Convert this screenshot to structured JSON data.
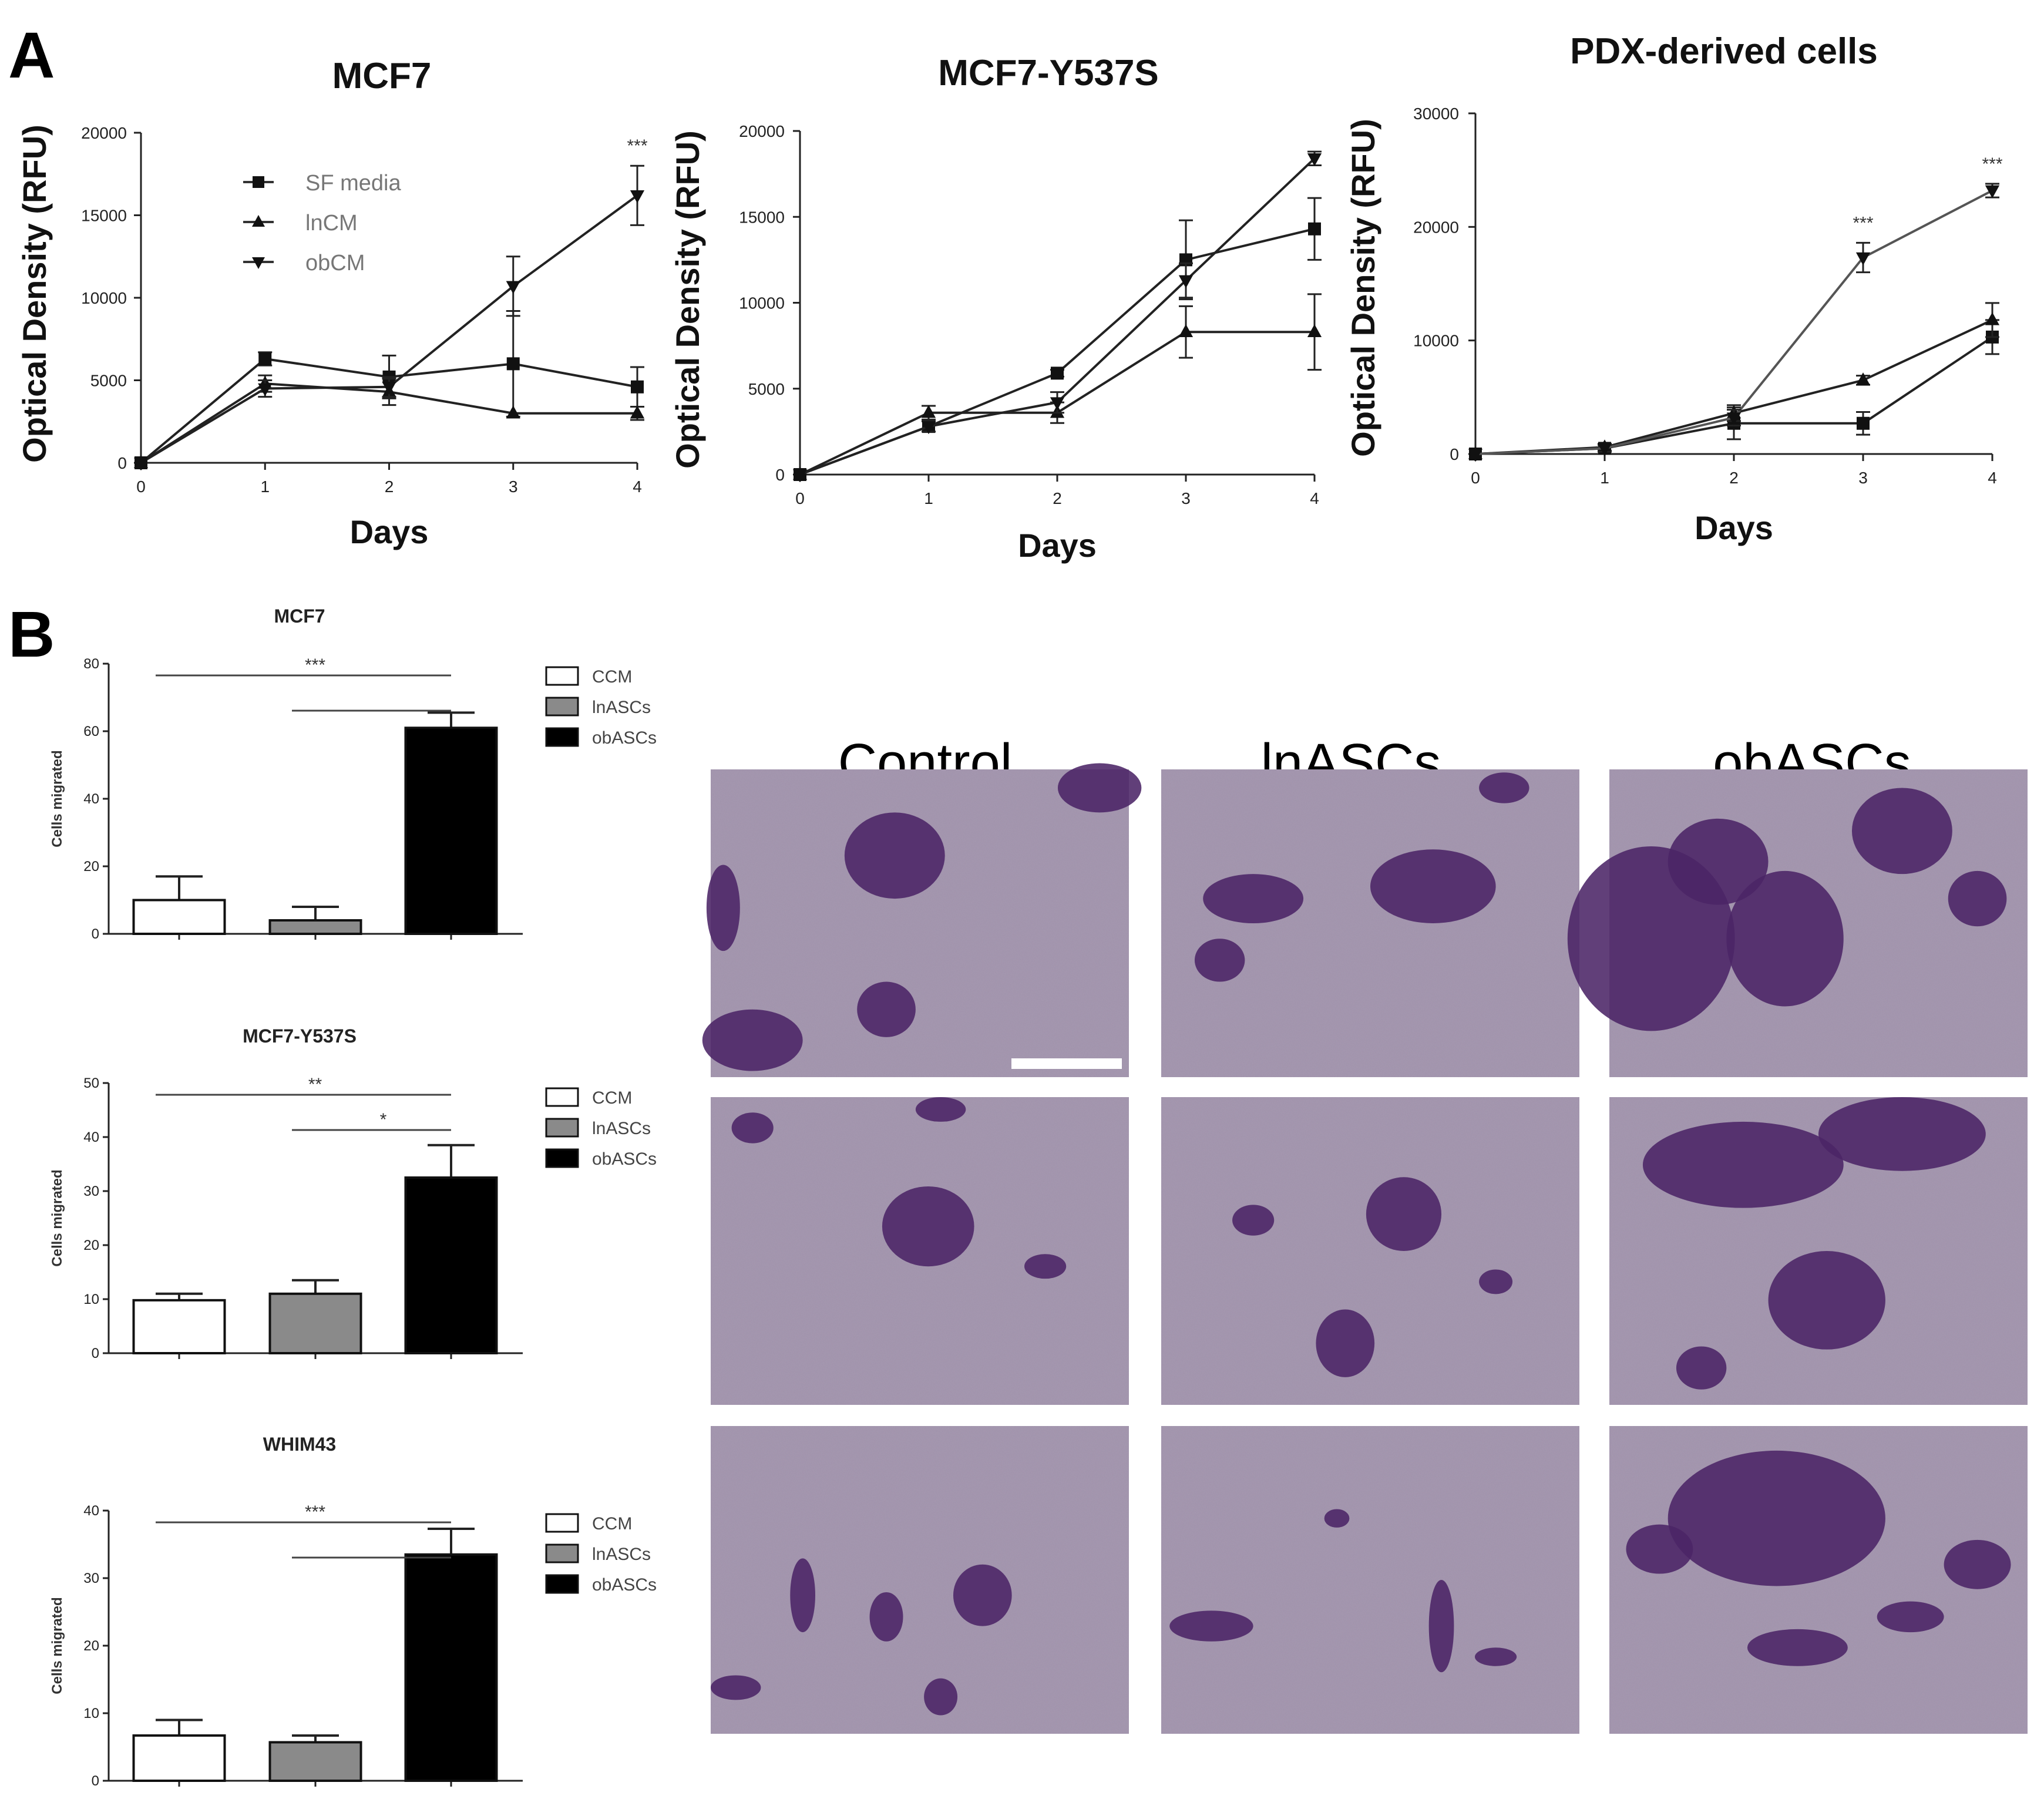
{
  "panels": {
    "a": "A",
    "b": "B"
  },
  "colors": {
    "control_image": "#a89ab2",
    "stain": "#4b2466",
    "bar_white": "#ffffff",
    "bar_grey": "#8a8a8a",
    "bar_black": "#000000"
  },
  "image_conditions": [
    "Control",
    "lnASCs",
    "obASCs"
  ],
  "chart_data": [
    {
      "type": "line",
      "title": "MCF7",
      "xlabel": "Days",
      "ylabel": "Optical Density (RFU)",
      "x": [
        0,
        1,
        2,
        3,
        4
      ],
      "ylim": [
        0,
        20000
      ],
      "yticks": [
        "0",
        "5000",
        "10000",
        "15000",
        "20000"
      ],
      "xticks": [
        "0",
        "1",
        "2",
        "3",
        "4"
      ],
      "legend": "top-left",
      "series": [
        {
          "name": "SF media",
          "marker": "square",
          "values": [
            0,
            6300,
            5200,
            6000,
            4600
          ],
          "errors": [
            0,
            400,
            1300,
            3200,
            1200
          ]
        },
        {
          "name": "lnCM",
          "marker": "triangle-up",
          "values": [
            0,
            4800,
            4300,
            3000,
            3000
          ],
          "errors": [
            0,
            500,
            800,
            0,
            400
          ]
        },
        {
          "name": "obCM",
          "marker": "triangle-down",
          "values": [
            0,
            4500,
            4600,
            10700,
            16200
          ],
          "errors": [
            0,
            500,
            600,
            1800,
            1800
          ]
        }
      ],
      "annotations": [
        {
          "x": 4,
          "text": "***"
        }
      ]
    },
    {
      "type": "line",
      "title": "MCF7-Y537S",
      "xlabel": "Days",
      "ylabel": "Optical Density (RFU)",
      "x": [
        0,
        1,
        2,
        3,
        4
      ],
      "ylim": [
        0,
        20000
      ],
      "yticks": [
        "0",
        "5000",
        "10000",
        "15000",
        "20000"
      ],
      "xticks": [
        "0",
        "1",
        "2",
        "3",
        "4"
      ],
      "series": [
        {
          "marker": "square",
          "values": [
            0,
            2800,
            5900,
            12500,
            14300
          ],
          "errors": [
            0,
            300,
            200,
            2300,
            1800
          ]
        },
        {
          "marker": "triangle-up",
          "values": [
            0,
            3600,
            3600,
            8300,
            8300
          ],
          "errors": [
            0,
            400,
            600,
            1500,
            2200
          ]
        },
        {
          "marker": "triangle-down",
          "values": [
            0,
            2800,
            4200,
            11300,
            18400
          ],
          "errors": [
            0,
            300,
            600,
            1000,
            400
          ]
        }
      ]
    },
    {
      "type": "line",
      "title": "PDX-derived cells",
      "xlabel": "Days",
      "ylabel": "Optical Density (RFU)",
      "x": [
        0,
        1,
        2,
        3,
        4
      ],
      "ylim": [
        0,
        30000
      ],
      "yticks": [
        "0",
        "10000",
        "20000",
        "30000"
      ],
      "xticks": [
        "0",
        "1",
        "2",
        "3",
        "4"
      ],
      "series": [
        {
          "marker": "square",
          "values": [
            0,
            500,
            2700,
            2700,
            10300
          ],
          "errors": [
            0,
            300,
            1400,
            1000,
            1500
          ]
        },
        {
          "marker": "triangle-up",
          "values": [
            0,
            600,
            3600,
            6500,
            11800
          ],
          "errors": [
            0,
            300,
            700,
            400,
            1500
          ]
        },
        {
          "marker": "triangle-down",
          "values": [
            0,
            500,
            3200,
            17300,
            23200
          ],
          "errors": [
            0,
            300,
            700,
            1300,
            600
          ]
        }
      ],
      "annotations": [
        {
          "x": 3,
          "text": "***"
        },
        {
          "x": 4,
          "text": "***"
        }
      ]
    },
    {
      "type": "bar",
      "title": "MCF7",
      "ylabel": "Cells migrated",
      "categories": [
        "CCM",
        "lnASCs",
        "obASCs"
      ],
      "values": [
        10,
        4,
        61
      ],
      "errors": [
        7,
        4,
        4.5
      ],
      "ylim": [
        0,
        80
      ],
      "yticks": [
        "0",
        "20",
        "40",
        "60",
        "80"
      ],
      "legend": "right",
      "significance": [
        {
          "from": 0,
          "to": 2,
          "text": "***"
        },
        {
          "from": 1,
          "to": 2,
          "text": ""
        }
      ]
    },
    {
      "type": "bar",
      "title": "MCF7-Y537S",
      "ylabel": "Cells migrated",
      "categories": [
        "CCM",
        "lnASCs",
        "obASCs"
      ],
      "values": [
        9.8,
        11,
        32.5
      ],
      "errors": [
        1.2,
        2.5,
        6
      ],
      "ylim": [
        0,
        50
      ],
      "yticks": [
        "0",
        "10",
        "20",
        "30",
        "40",
        "50"
      ],
      "legend": "right",
      "significance": [
        {
          "from": 0,
          "to": 2,
          "text": "**"
        },
        {
          "from": 1,
          "to": 2,
          "text": "*"
        }
      ]
    },
    {
      "type": "bar",
      "title": "WHIM43",
      "ylabel": "Cells migrated",
      "categories": [
        "CCM",
        "lnASCs",
        "obASCs"
      ],
      "values": [
        6.7,
        5.7,
        33.5
      ],
      "errors": [
        2.3,
        1,
        3.8
      ],
      "ylim": [
        0,
        40
      ],
      "yticks": [
        "0",
        "10",
        "20",
        "30",
        "40"
      ],
      "legend": "right",
      "significance": [
        {
          "from": 0,
          "to": 2,
          "text": "***"
        },
        {
          "from": 1,
          "to": 2,
          "text": ""
        }
      ]
    }
  ]
}
